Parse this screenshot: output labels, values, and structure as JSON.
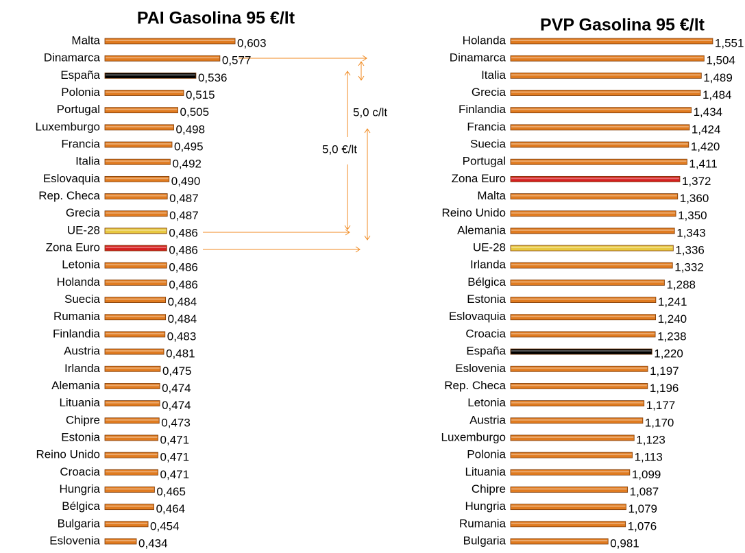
{
  "chart_data": [
    {
      "type": "bar",
      "orientation": "horizontal",
      "title": "PAI Gasolina 95 €/lt",
      "categories": [
        "Malta",
        "Dinamarca",
        "España",
        "Polonia",
        "Portugal",
        "Luxemburgo",
        "Francia",
        "Italia",
        "Eslovaquia",
        "Rep. Checa",
        "Grecia",
        "UE-28",
        "Zona Euro",
        "Letonia",
        "Holanda",
        "Suecia",
        "Rumania",
        "Finlandia",
        "Austria",
        "Irlanda",
        "Alemania",
        "Lituania",
        "Chipre",
        "Estonia",
        "Reino Unido",
        "Croacia",
        "Hungria",
        "Bélgica",
        "Bulgaria",
        "Eslovenia"
      ],
      "values": [
        0.603,
        0.577,
        0.536,
        0.515,
        0.505,
        0.498,
        0.495,
        0.492,
        0.49,
        0.487,
        0.487,
        0.486,
        0.486,
        0.486,
        0.486,
        0.484,
        0.484,
        0.483,
        0.481,
        0.475,
        0.474,
        0.474,
        0.473,
        0.471,
        0.471,
        0.471,
        0.465,
        0.464,
        0.454,
        0.434
      ],
      "value_labels": [
        "0,603",
        "0,577",
        "0,536",
        "0,515",
        "0,505",
        "0,498",
        "0,495",
        "0,492",
        "0,490",
        "0,487",
        "0,487",
        "0,486",
        "0,486",
        "0,486",
        "0,486",
        "0,484",
        "0,484",
        "0,483",
        "0,481",
        "0,475",
        "0,474",
        "0,474",
        "0,473",
        "0,471",
        "0,471",
        "0,471",
        "0,465",
        "0,464",
        "0,454",
        "0,434"
      ],
      "xlim": [
        0.38,
        0.61
      ],
      "color": "#e07b20",
      "highlight_colors": {
        "España": "#000000",
        "UE-28": "#e8c840",
        "Zona Euro": "#d42020"
      }
    },
    {
      "type": "bar",
      "orientation": "horizontal",
      "title": "PVP Gasolina 95 €/lt",
      "categories": [
        "Holanda",
        "Dinamarca",
        "Italia",
        "Grecia",
        "Finlandia",
        "Francia",
        "Suecia",
        "Portugal",
        "Zona Euro",
        "Malta",
        "Reino Unido",
        "Alemania",
        "UE-28",
        "Irlanda",
        "Bélgica",
        "Estonia",
        "Eslovaquia",
        "Croacia",
        "España",
        "Eslovenia",
        "Rep. Checa",
        "Letonia",
        "Austria",
        "Luxemburgo",
        "Polonia",
        "Lituania",
        "Chipre",
        "Hungria",
        "Rumania",
        "Bulgaria"
      ],
      "values": [
        1.551,
        1.504,
        1.489,
        1.484,
        1.434,
        1.424,
        1.42,
        1.411,
        1.372,
        1.36,
        1.35,
        1.343,
        1.336,
        1.332,
        1.288,
        1.241,
        1.24,
        1.238,
        1.22,
        1.197,
        1.196,
        1.177,
        1.17,
        1.123,
        1.113,
        1.099,
        1.087,
        1.079,
        1.076,
        0.981
      ],
      "value_labels": [
        "1,551",
        "1,504",
        "1,489",
        "1,484",
        "1,434",
        "1,424",
        "1,420",
        "1,411",
        "1,372",
        "1,360",
        "1,350",
        "1,343",
        "1,336",
        "1,332",
        "1,288",
        "1,241",
        "1,240",
        "1,238",
        "1,220",
        "1,197",
        "1,196",
        "1,177",
        "1,170",
        "1,123",
        "1,113",
        "1,099",
        "1,087",
        "1,079",
        "1,076",
        "0,981"
      ],
      "xlim": [
        0.45,
        1.57
      ],
      "color": "#e07b20",
      "highlight_colors": {
        "España": "#000000",
        "UE-28": "#e8c840",
        "Zona Euro": "#d42020"
      }
    }
  ],
  "annotations": [
    "5,0 c/lt",
    "5,0 €/lt"
  ]
}
